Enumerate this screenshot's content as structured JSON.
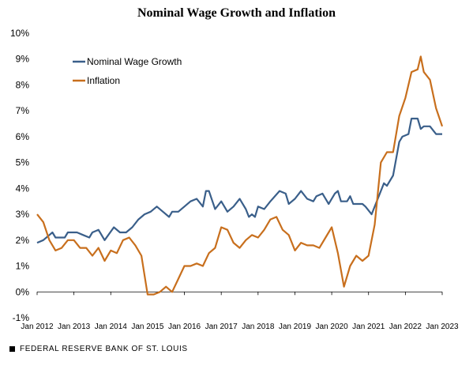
{
  "chart_data": {
    "type": "line",
    "title": "Nominal Wage Growth and Inflation",
    "xlabel": "",
    "ylabel": "",
    "ylim": [
      -1,
      10
    ],
    "y_ticks": [
      "-1%",
      "0%",
      "1%",
      "2%",
      "3%",
      "4%",
      "5%",
      "6%",
      "7%",
      "8%",
      "9%",
      "10%"
    ],
    "x_ticks": [
      "Jan 2012",
      "Jan 2013",
      "Jan 2014",
      "Jan 2015",
      "Jan 2016",
      "Jan 2017",
      "Jan 2018",
      "Jan 2019",
      "Jan 2020",
      "Jan 2021",
      "Jan 2022",
      "Jan 2023"
    ],
    "x_range": [
      "2012-01",
      "2023-01"
    ],
    "legend_position": "top-left",
    "grid": false,
    "series": [
      {
        "name": "Nominal Wage Growth",
        "color": "#3A5F8A",
        "points": [
          [
            "2012-01",
            1.9
          ],
          [
            "2012-03",
            2.0
          ],
          [
            "2012-05",
            2.2
          ],
          [
            "2012-06",
            2.3
          ],
          [
            "2012-07",
            2.1
          ],
          [
            "2012-10",
            2.1
          ],
          [
            "2012-11",
            2.3
          ],
          [
            "2013-02",
            2.3
          ],
          [
            "2013-04",
            2.2
          ],
          [
            "2013-06",
            2.1
          ],
          [
            "2013-07",
            2.3
          ],
          [
            "2013-09",
            2.4
          ],
          [
            "2013-11",
            2.0
          ],
          [
            "2014-02",
            2.5
          ],
          [
            "2014-04",
            2.3
          ],
          [
            "2014-06",
            2.3
          ],
          [
            "2014-08",
            2.5
          ],
          [
            "2014-10",
            2.8
          ],
          [
            "2014-12",
            3.0
          ],
          [
            "2015-02",
            3.1
          ],
          [
            "2015-04",
            3.3
          ],
          [
            "2015-06",
            3.1
          ],
          [
            "2015-08",
            2.9
          ],
          [
            "2015-09",
            3.1
          ],
          [
            "2015-11",
            3.1
          ],
          [
            "2016-01",
            3.3
          ],
          [
            "2016-03",
            3.5
          ],
          [
            "2016-05",
            3.6
          ],
          [
            "2016-07",
            3.3
          ],
          [
            "2016-08",
            3.9
          ],
          [
            "2016-09",
            3.9
          ],
          [
            "2016-11",
            3.2
          ],
          [
            "2017-01",
            3.5
          ],
          [
            "2017-03",
            3.1
          ],
          [
            "2017-05",
            3.3
          ],
          [
            "2017-07",
            3.6
          ],
          [
            "2017-09",
            3.2
          ],
          [
            "2017-10",
            2.9
          ],
          [
            "2017-11",
            3.0
          ],
          [
            "2017-12",
            2.9
          ],
          [
            "2018-01",
            3.3
          ],
          [
            "2018-03",
            3.2
          ],
          [
            "2018-05",
            3.5
          ],
          [
            "2018-08",
            3.9
          ],
          [
            "2018-10",
            3.8
          ],
          [
            "2018-11",
            3.4
          ],
          [
            "2019-01",
            3.6
          ],
          [
            "2019-03",
            3.9
          ],
          [
            "2019-05",
            3.6
          ],
          [
            "2019-07",
            3.5
          ],
          [
            "2019-08",
            3.7
          ],
          [
            "2019-10",
            3.8
          ],
          [
            "2019-12",
            3.4
          ],
          [
            "2020-02",
            3.8
          ],
          [
            "2020-03",
            3.9
          ],
          [
            "2020-04",
            3.5
          ],
          [
            "2020-06",
            3.5
          ],
          [
            "2020-07",
            3.7
          ],
          [
            "2020-08",
            3.4
          ],
          [
            "2020-11",
            3.4
          ],
          [
            "2020-12",
            3.3
          ],
          [
            "2021-02",
            3.0
          ],
          [
            "2021-04",
            3.6
          ],
          [
            "2021-06",
            4.2
          ],
          [
            "2021-07",
            4.1
          ],
          [
            "2021-09",
            4.5
          ],
          [
            "2021-11",
            5.8
          ],
          [
            "2021-12",
            6.0
          ],
          [
            "2022-02",
            6.1
          ],
          [
            "2022-03",
            6.7
          ],
          [
            "2022-05",
            6.7
          ],
          [
            "2022-06",
            6.3
          ],
          [
            "2022-07",
            6.4
          ],
          [
            "2022-09",
            6.4
          ],
          [
            "2022-11",
            6.1
          ],
          [
            "2023-01",
            6.1
          ]
        ]
      },
      {
        "name": "Inflation",
        "color": "#C86F1D",
        "points": [
          [
            "2012-01",
            3.0
          ],
          [
            "2012-03",
            2.7
          ],
          [
            "2012-05",
            2.0
          ],
          [
            "2012-07",
            1.6
          ],
          [
            "2012-09",
            1.7
          ],
          [
            "2012-11",
            2.0
          ],
          [
            "2013-01",
            2.0
          ],
          [
            "2013-03",
            1.7
          ],
          [
            "2013-05",
            1.7
          ],
          [
            "2013-07",
            1.4
          ],
          [
            "2013-09",
            1.7
          ],
          [
            "2013-11",
            1.2
          ],
          [
            "2014-01",
            1.6
          ],
          [
            "2014-03",
            1.5
          ],
          [
            "2014-05",
            2.0
          ],
          [
            "2014-07",
            2.1
          ],
          [
            "2014-09",
            1.8
          ],
          [
            "2014-11",
            1.4
          ],
          [
            "2015-01",
            -0.1
          ],
          [
            "2015-03",
            -0.1
          ],
          [
            "2015-05",
            0.0
          ],
          [
            "2015-07",
            0.2
          ],
          [
            "2015-09",
            0.0
          ],
          [
            "2015-11",
            0.5
          ],
          [
            "2016-01",
            1.0
          ],
          [
            "2016-03",
            1.0
          ],
          [
            "2016-05",
            1.1
          ],
          [
            "2016-07",
            1.0
          ],
          [
            "2016-09",
            1.5
          ],
          [
            "2016-11",
            1.7
          ],
          [
            "2017-01",
            2.5
          ],
          [
            "2017-03",
            2.4
          ],
          [
            "2017-05",
            1.9
          ],
          [
            "2017-07",
            1.7
          ],
          [
            "2017-09",
            2.0
          ],
          [
            "2017-11",
            2.2
          ],
          [
            "2018-01",
            2.1
          ],
          [
            "2018-03",
            2.4
          ],
          [
            "2018-05",
            2.8
          ],
          [
            "2018-07",
            2.9
          ],
          [
            "2018-09",
            2.4
          ],
          [
            "2018-11",
            2.2
          ],
          [
            "2019-01",
            1.6
          ],
          [
            "2019-03",
            1.9
          ],
          [
            "2019-05",
            1.8
          ],
          [
            "2019-07",
            1.8
          ],
          [
            "2019-09",
            1.7
          ],
          [
            "2019-11",
            2.1
          ],
          [
            "2020-01",
            2.5
          ],
          [
            "2020-03",
            1.5
          ],
          [
            "2020-05",
            0.2
          ],
          [
            "2020-07",
            1.0
          ],
          [
            "2020-09",
            1.4
          ],
          [
            "2020-11",
            1.2
          ],
          [
            "2021-01",
            1.4
          ],
          [
            "2021-03",
            2.6
          ],
          [
            "2021-05",
            5.0
          ],
          [
            "2021-07",
            5.4
          ],
          [
            "2021-09",
            5.4
          ],
          [
            "2021-11",
            6.8
          ],
          [
            "2022-01",
            7.5
          ],
          [
            "2022-03",
            8.5
          ],
          [
            "2022-05",
            8.6
          ],
          [
            "2022-06",
            9.1
          ],
          [
            "2022-07",
            8.5
          ],
          [
            "2022-09",
            8.2
          ],
          [
            "2022-11",
            7.1
          ],
          [
            "2023-01",
            6.4
          ]
        ]
      }
    ]
  },
  "footer": {
    "source_label": "FEDERAL RESERVE BANK OF ST. LOUIS"
  }
}
